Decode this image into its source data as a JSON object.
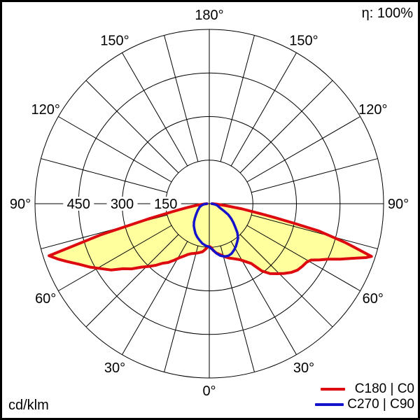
{
  "meta": {
    "efficiency_label": "η: 100%",
    "unit_label": "cd/klm"
  },
  "legend": [
    {
      "label": "C180 | C0",
      "color": "#dd0a10"
    },
    {
      "label": "C270 | C90",
      "color": "#1512cc"
    }
  ],
  "chart_data": {
    "type": "polar_intensity_distribution",
    "unit": "cd/klm",
    "efficiency_percent": 100,
    "rmax": 600,
    "angle_grid_step_deg": 15,
    "grid_color": "#000000",
    "radial_ticks": {
      "circle_values": [
        150,
        300,
        450,
        600
      ],
      "labels": [
        {
          "value": 450,
          "text": "450"
        },
        {
          "value": 300,
          "text": "300"
        },
        {
          "value": 150,
          "text": "150"
        }
      ]
    },
    "angle_labels": [
      {
        "deg": 180,
        "text": "180°"
      },
      {
        "deg": -150,
        "text": "150°"
      },
      {
        "deg": 150,
        "text": "150°"
      },
      {
        "deg": -120,
        "text": "120°"
      },
      {
        "deg": 120,
        "text": "120°"
      },
      {
        "deg": -90,
        "text": "90°"
      },
      {
        "deg": 90,
        "text": "90°"
      },
      {
        "deg": -60,
        "text": "60°"
      },
      {
        "deg": 60,
        "text": "60°"
      },
      {
        "deg": -30,
        "text": "30°"
      },
      {
        "deg": 30,
        "text": "30°"
      },
      {
        "deg": 0,
        "text": "0°"
      }
    ],
    "series": [
      {
        "name": "C180 | C0",
        "color": "#dd0a10",
        "width": 4,
        "fill": "#ffff9e",
        "points": [
          [
            -90,
            8
          ],
          [
            -86,
            20
          ],
          [
            -83,
            45
          ],
          [
            -80,
            80
          ],
          [
            -78,
            125
          ],
          [
            -76,
            215
          ],
          [
            -74,
            390
          ],
          [
            -72,
            580
          ],
          [
            -70,
            556
          ],
          [
            -68,
            530
          ],
          [
            -65,
            494
          ],
          [
            -62,
            465
          ],
          [
            -59,
            434
          ],
          [
            -56,
            408
          ],
          [
            -53,
            372
          ],
          [
            -50,
            349
          ],
          [
            -47,
            320
          ],
          [
            -44,
            300
          ],
          [
            -41,
            281
          ],
          [
            -38,
            260
          ],
          [
            -35,
            247
          ],
          [
            -32,
            230
          ],
          [
            -29,
            213
          ],
          [
            -26,
            201
          ],
          [
            -23,
            190
          ],
          [
            -20,
            183
          ],
          [
            -17,
            179
          ],
          [
            -14,
            175
          ],
          [
            -11,
            171
          ],
          [
            -8,
            167
          ],
          [
            -5,
            158
          ],
          [
            -2,
            149
          ],
          [
            0,
            147
          ],
          [
            2,
            150
          ],
          [
            5,
            162
          ],
          [
            8,
            171
          ],
          [
            11,
            177
          ],
          [
            14,
            184
          ],
          [
            17,
            192
          ],
          [
            20,
            199
          ],
          [
            23,
            205
          ],
          [
            26,
            212
          ],
          [
            29,
            221
          ],
          [
            32,
            235
          ],
          [
            35,
            251
          ],
          [
            38,
            294
          ],
          [
            41,
            319
          ],
          [
            44,
            335
          ],
          [
            47,
            352
          ],
          [
            50,
            368
          ],
          [
            53,
            380
          ],
          [
            56,
            386
          ],
          [
            59,
            391
          ],
          [
            61,
            400
          ],
          [
            63,
            426
          ],
          [
            65,
            452
          ],
          [
            67,
            489
          ],
          [
            69,
            525
          ],
          [
            71,
            570
          ],
          [
            72,
            587
          ],
          [
            74,
            490
          ],
          [
            76,
            390
          ],
          [
            77,
            300
          ],
          [
            78,
            230
          ],
          [
            79,
            180
          ],
          [
            81,
            115
          ],
          [
            83,
            60
          ],
          [
            86,
            28
          ],
          [
            90,
            10
          ]
        ]
      },
      {
        "name": "C270 | C90",
        "color": "#1512cc",
        "width": 3.5,
        "fill": null,
        "points": [
          [
            -90,
            8
          ],
          [
            -85,
            18
          ],
          [
            -80,
            24
          ],
          [
            -75,
            30
          ],
          [
            -70,
            36
          ],
          [
            -65,
            40
          ],
          [
            -60,
            46
          ],
          [
            -55,
            52
          ],
          [
            -50,
            60
          ],
          [
            -45,
            70
          ],
          [
            -40,
            82
          ],
          [
            -35,
            93
          ],
          [
            -30,
            102
          ],
          [
            -25,
            113
          ],
          [
            -20,
            122
          ],
          [
            -15,
            130
          ],
          [
            -10,
            139
          ],
          [
            -5,
            145
          ],
          [
            0,
            149
          ],
          [
            5,
            161
          ],
          [
            8,
            172
          ],
          [
            12,
            183
          ],
          [
            16,
            189
          ],
          [
            20,
            191
          ],
          [
            24,
            188
          ],
          [
            28,
            181
          ],
          [
            32,
            173
          ],
          [
            36,
            163
          ],
          [
            40,
            154
          ],
          [
            44,
            139
          ],
          [
            48,
            120
          ],
          [
            52,
            105
          ],
          [
            56,
            90
          ],
          [
            60,
            75
          ],
          [
            64,
            55
          ],
          [
            68,
            41
          ],
          [
            72,
            34
          ],
          [
            76,
            30
          ],
          [
            80,
            24
          ],
          [
            85,
            16
          ],
          [
            90,
            8
          ]
        ]
      }
    ]
  }
}
